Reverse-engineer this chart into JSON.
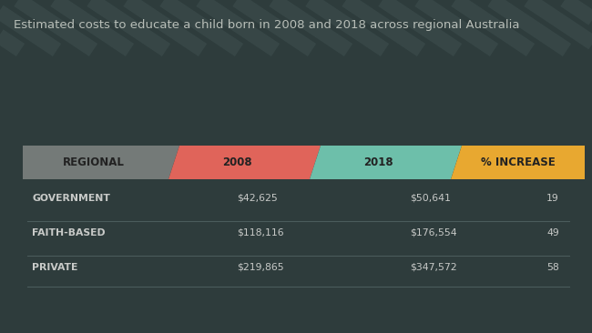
{
  "title": "Estimated costs to educate a child born in 2008 and 2018 across regional Australia",
  "background_color": "#2e3c3c",
  "title_color": "#b8beb8",
  "title_fontsize": 9.5,
  "header_labels": [
    "REGIONAL",
    "2008",
    "2018",
    "% INCREASE"
  ],
  "header_colors": [
    "#747a78",
    "#e0645a",
    "#6dbfaa",
    "#e8a830"
  ],
  "header_text_color": "#222222",
  "header_fontsize": 8.5,
  "rows": [
    {
      "label": "GOVERNMENT",
      "val2008": "$42,625",
      "val2018": "$50,641",
      "pct": "19"
    },
    {
      "label": "FAITH-BASED",
      "val2008": "$118,116",
      "val2018": "$176,554",
      "pct": "49"
    },
    {
      "label": "PRIVATE",
      "val2008": "$219,865",
      "val2018": "$347,572",
      "pct": "58"
    }
  ],
  "row_label_color": "#c8cac8",
  "row_value_color": "#c8cac8",
  "row_fontsize": 7.8,
  "divider_color": "#4a5c5c",
  "stripe_color": "#384848",
  "stripe_highlight": "#3f5050"
}
